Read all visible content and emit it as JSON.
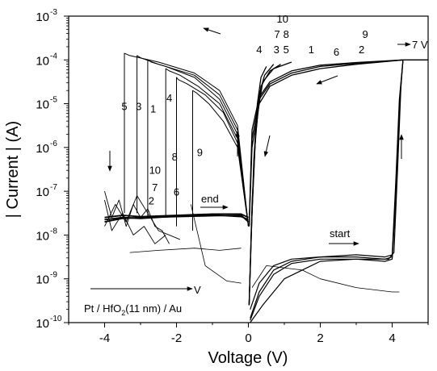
{
  "chart_data": {
    "type": "line",
    "title": "",
    "xlabel": "Voltage (V)",
    "ylabel": "| Current | (A)",
    "xlim": [
      -5,
      5
    ],
    "ylim_log10": [
      -10,
      -3
    ],
    "y_scale": "log",
    "x_ticks": [
      -4,
      -2,
      0,
      2,
      4
    ],
    "x_tick_labels": [
      "-4",
      "-2",
      "0",
      "2",
      "4"
    ],
    "y_ticks_exp": [
      -10,
      -9,
      -8,
      -7,
      -6,
      -5,
      -4,
      -3
    ],
    "y_tick_labels": [
      {
        "base": "10",
        "exp": "-10"
      },
      {
        "base": "10",
        "exp": "-9"
      },
      {
        "base": "10",
        "exp": "-8"
      },
      {
        "base": "10",
        "exp": "-7"
      },
      {
        "base": "10",
        "exp": "-6"
      },
      {
        "base": "10",
        "exp": "-5"
      },
      {
        "base": "10",
        "exp": "-4"
      },
      {
        "base": "10",
        "exp": "-3"
      }
    ],
    "grid": false,
    "legend": "none",
    "annotations": {
      "start": "start",
      "end": "end",
      "stop_voltage": "7 V",
      "sweep_label": "V",
      "device_parts": [
        "Pt / HfO",
        "2",
        "(11 nm) / Au"
      ]
    },
    "cycle_labels": [
      {
        "text": "5",
        "x": -3.45,
        "y_log": -5.15
      },
      {
        "text": "3",
        "x": -3.05,
        "y_log": -5.15
      },
      {
        "text": "1",
        "x": -2.65,
        "y_log": -5.2
      },
      {
        "text": "4",
        "x": -2.2,
        "y_log": -4.95
      },
      {
        "text": "8",
        "x": -2.05,
        "y_log": -6.3
      },
      {
        "text": "9",
        "x": -1.35,
        "y_log": -6.2
      },
      {
        "text": "10",
        "x": -2.6,
        "y_log": -6.6
      },
      {
        "text": "7",
        "x": -2.6,
        "y_log": -7.0
      },
      {
        "text": "6",
        "x": -2.0,
        "y_log": -7.1
      },
      {
        "text": "2",
        "x": -2.7,
        "y_log": -7.3
      },
      {
        "text": "10",
        "x": 0.95,
        "y_log": -3.15
      },
      {
        "text": "7",
        "x": 0.8,
        "y_log": -3.5
      },
      {
        "text": "8",
        "x": 1.05,
        "y_log": -3.5
      },
      {
        "text": "4",
        "x": 0.3,
        "y_log": -3.85
      },
      {
        "text": "3",
        "x": 0.78,
        "y_log": -3.85
      },
      {
        "text": "5",
        "x": 1.05,
        "y_log": -3.85
      },
      {
        "text": "1",
        "x": 1.75,
        "y_log": -3.85
      },
      {
        "text": "6",
        "x": 2.45,
        "y_log": -3.9
      },
      {
        "text": "9",
        "x": 3.25,
        "y_log": -3.5
      },
      {
        "text": "2",
        "x": 3.15,
        "y_log": -3.85
      }
    ],
    "series_on": [
      {
        "x": [
          0.02,
          0.08,
          0.15,
          0.25,
          0.35,
          0.5
        ],
        "y_log": [
          -9.6,
          -8.0,
          -6.3,
          -5.0,
          -4.4,
          -4.15
        ]
      },
      {
        "x": [
          0.02,
          0.08,
          0.18,
          0.3,
          0.45,
          0.7
        ],
        "y_log": [
          -9.6,
          -7.9,
          -6.0,
          -4.8,
          -4.35,
          -4.1
        ]
      },
      {
        "x": [
          0.02,
          0.1,
          0.2,
          0.35,
          0.6,
          0.9
        ],
        "y_log": [
          -9.6,
          -7.5,
          -5.7,
          -4.6,
          -4.25,
          -4.1
        ]
      },
      {
        "x": [
          0.02,
          0.1,
          0.22,
          0.4,
          0.7,
          1.2
        ],
        "y_log": [
          -9.6,
          -7.3,
          -5.4,
          -4.5,
          -4.2,
          -4.05
        ]
      }
    ],
    "series_off": [
      {
        "x": [
          0.0,
          -0.3,
          -0.8,
          -1.5,
          -2.5,
          -3.3,
          -3.45,
          -3.45
        ],
        "y_log": [
          -7.8,
          -5.5,
          -4.7,
          -4.3,
          -4.05,
          -3.9,
          -3.85,
          -7.5
        ]
      },
      {
        "x": [
          0.0,
          -0.3,
          -0.8,
          -1.5,
          -2.5,
          -3.0,
          -3.1,
          -3.1
        ],
        "y_log": [
          -7.8,
          -5.6,
          -4.8,
          -4.35,
          -4.1,
          -3.95,
          -3.9,
          -7.5
        ]
      },
      {
        "x": [
          0.0,
          -0.3,
          -0.8,
          -1.5,
          -2.3,
          -2.7,
          -2.8,
          -2.8
        ],
        "y_log": [
          -7.8,
          -5.7,
          -4.9,
          -4.4,
          -4.15,
          -4.05,
          -4.0,
          -7.6
        ]
      },
      {
        "x": [
          0.0,
          -0.3,
          -0.8,
          -1.4,
          -1.9,
          -2.2,
          -2.3,
          -2.3
        ],
        "y_log": [
          -7.8,
          -5.8,
          -5.0,
          -4.6,
          -4.35,
          -4.25,
          -4.2,
          -7.6
        ]
      },
      {
        "x": [
          0.0,
          -0.3,
          -0.7,
          -1.2,
          -1.7,
          -1.95,
          -2.0,
          -2.0
        ],
        "y_log": [
          -7.8,
          -5.9,
          -5.2,
          -4.8,
          -4.55,
          -4.45,
          -4.4,
          -7.8
        ]
      },
      {
        "x": [
          0.0,
          -0.3,
          -0.7,
          -1.1,
          -1.45,
          -1.55,
          -1.55
        ],
        "y_log": [
          -7.8,
          -6.0,
          -5.4,
          -5.0,
          -4.75,
          -4.7,
          -7.9
        ]
      }
    ],
    "series_lrs_back": [
      {
        "x": [
          4.3,
          3.0,
          2.0,
          1.2,
          0.6,
          0.3,
          0.1,
          0.02
        ],
        "y_log": [
          -4.0,
          -4.08,
          -4.15,
          -4.3,
          -4.55,
          -4.9,
          -5.8,
          -7.8
        ]
      },
      {
        "x": [
          4.3,
          3.0,
          2.0,
          1.2,
          0.6,
          0.3,
          0.1,
          0.02
        ],
        "y_log": [
          -4.0,
          -4.06,
          -4.12,
          -4.25,
          -4.5,
          -4.85,
          -5.6,
          -7.8
        ]
      },
      {
        "x": [
          4.3,
          3.0,
          2.0,
          1.2,
          0.6,
          0.3,
          0.1,
          0.02
        ],
        "y_log": [
          -4.0,
          -4.1,
          -4.2,
          -4.35,
          -4.6,
          -5.0,
          -6.0,
          -7.8
        ]
      }
    ],
    "series_hrs": [
      {
        "x": [
          0.05,
          0.3,
          0.7,
          1.2,
          2.0,
          3.0,
          3.8,
          4.0,
          4.1,
          4.2,
          4.3,
          5.0
        ],
        "y_log": [
          -9.9,
          -9.3,
          -8.8,
          -8.6,
          -8.5,
          -8.5,
          -8.55,
          -8.5,
          -7.0,
          -5.0,
          -4.0,
          -4.0
        ]
      },
      {
        "x": [
          0.05,
          0.3,
          0.7,
          1.2,
          2.0,
          3.0,
          3.8,
          4.0,
          4.1,
          4.2,
          4.3,
          5.0
        ],
        "y_log": [
          -9.7,
          -9.1,
          -8.7,
          -8.55,
          -8.5,
          -8.45,
          -8.5,
          -8.45,
          -6.8,
          -4.9,
          -4.0,
          -4.0
        ]
      },
      {
        "x": [
          0.05,
          0.3,
          0.7,
          1.2,
          2.0,
          3.0,
          3.8,
          4.0,
          4.1,
          4.2,
          4.3,
          5.0
        ],
        "y_log": [
          -9.95,
          -9.4,
          -8.9,
          -8.65,
          -8.55,
          -8.55,
          -8.6,
          -8.55,
          -7.2,
          -5.1,
          -4.0,
          -4.0
        ]
      },
      {
        "x": [
          0.05,
          0.4,
          1.0,
          2.0,
          3.0,
          3.9,
          4.05,
          4.15,
          4.25,
          4.3
        ],
        "y_log": [
          -10.0,
          -9.6,
          -9.0,
          -8.6,
          -8.55,
          -8.55,
          -8.4,
          -6.5,
          -4.5,
          -4.0
        ]
      }
    ],
    "series_end": [
      {
        "x": [
          -4.0,
          -3.5,
          -3.0,
          -2.0,
          -1.0,
          -0.2,
          0.0
        ],
        "y_log": [
          -7.6,
          -7.55,
          -7.58,
          -7.55,
          -7.52,
          -7.52,
          -7.6
        ]
      },
      {
        "x": [
          -4.0,
          -3.5,
          -3.0,
          -2.0,
          -1.0,
          -0.2,
          0.0
        ],
        "y_log": [
          -7.7,
          -7.62,
          -7.6,
          -7.58,
          -7.56,
          -7.55,
          -7.7
        ]
      },
      {
        "x": [
          -4.0,
          -3.5,
          -3.0,
          -2.0,
          -1.0,
          -0.2,
          0.0
        ],
        "y_log": [
          -7.65,
          -7.6,
          -7.62,
          -7.57,
          -7.54,
          -7.58,
          -7.65
        ]
      }
    ],
    "series_noise": [
      {
        "x": [
          -4.0,
          -3.8,
          -3.6,
          -3.4,
          -3.2,
          -3.0,
          -2.8,
          -2.6,
          -2.4,
          -2.2
        ],
        "y_log": [
          -7.0,
          -7.6,
          -7.2,
          -7.8,
          -7.3,
          -7.6,
          -7.4,
          -7.8,
          -7.9,
          -8.2
        ]
      },
      {
        "x": [
          -4.0,
          -3.7,
          -3.4,
          -3.1,
          -2.8,
          -2.5,
          -2.2,
          -1.9
        ],
        "y_log": [
          -7.8,
          -7.3,
          -7.7,
          -7.1,
          -7.5,
          -7.9,
          -8.0,
          -8.1
        ]
      },
      {
        "x": [
          -4.0,
          -3.8,
          -3.5,
          -3.2,
          -2.9,
          -2.6,
          -2.3
        ],
        "y_log": [
          -7.2,
          -7.9,
          -7.5,
          -8.0,
          -7.8,
          -8.2,
          -8.0
        ]
      }
    ],
    "series_misc": [
      {
        "x": [
          -3.3,
          -2.5,
          -1.5,
          -0.8,
          -0.2
        ],
        "y_log": [
          -8.4,
          -8.35,
          -8.3,
          -8.35,
          -8.3
        ]
      },
      {
        "x": [
          -1.6,
          -1.2,
          -0.6,
          -0.2
        ],
        "y_log": [
          -7.3,
          -8.7,
          -9.05,
          -9.1
        ]
      },
      {
        "x": [
          0.1,
          0.5,
          1.0,
          1.5,
          2.0,
          3.0,
          4.0,
          4.2
        ],
        "y_log": [
          -9.2,
          -8.7,
          -8.75,
          -8.8,
          -9.0,
          -9.2,
          -9.3,
          -9.3
        ]
      }
    ]
  }
}
